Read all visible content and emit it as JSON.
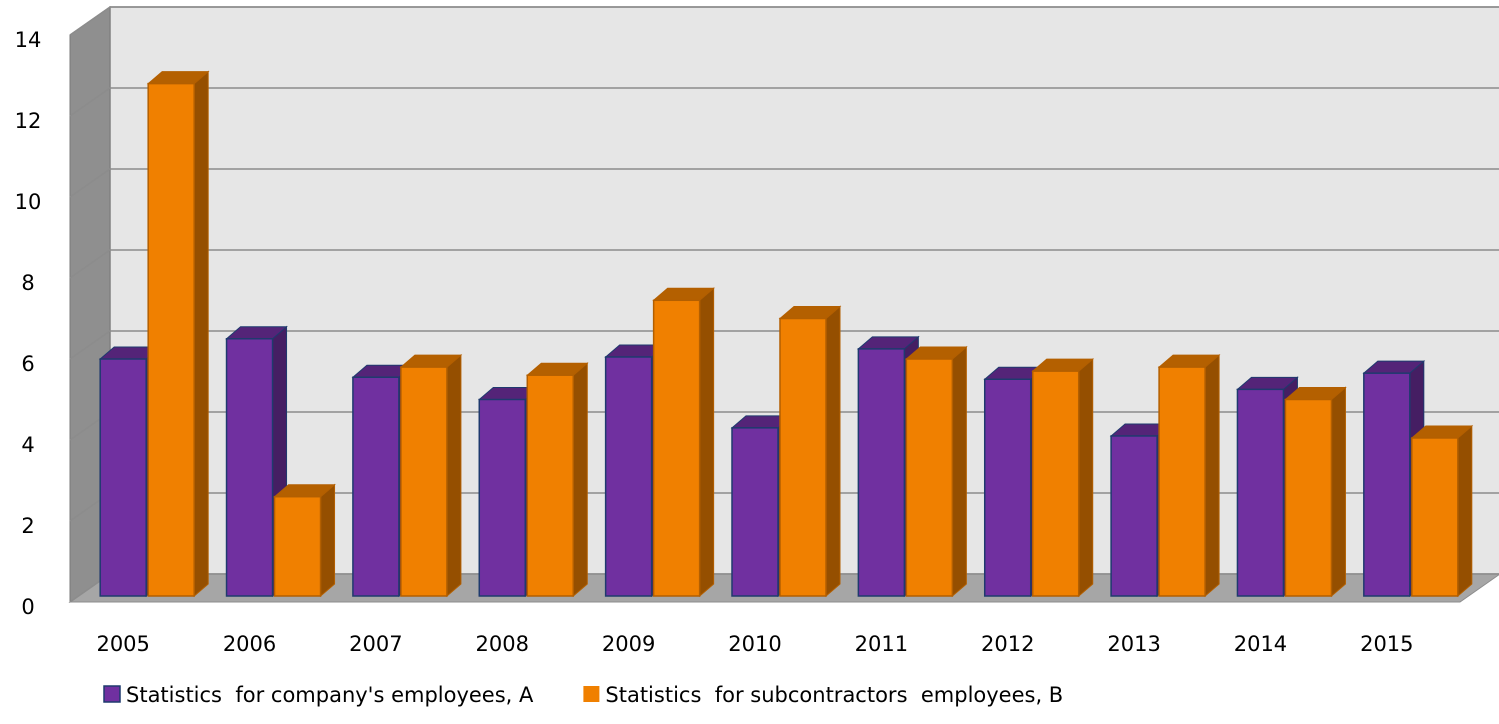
{
  "chart_data": {
    "type": "bar3d",
    "categories": [
      "2005",
      "2006",
      "2007",
      "2008",
      "2009",
      "2010",
      "2011",
      "2012",
      "2013",
      "2014",
      "2015"
    ],
    "series": [
      {
        "name": "Statistics  for company's employees, A",
        "color": "#7030a0",
        "values": [
          6.0,
          6.5,
          5.55,
          5.0,
          6.05,
          4.3,
          6.25,
          5.5,
          4.1,
          5.25,
          5.65
        ]
      },
      {
        "name": "Statistics  for subcontractors  employees, B",
        "color": "#f08000",
        "values": [
          12.8,
          2.6,
          5.8,
          5.6,
          7.45,
          7.0,
          6.0,
          5.7,
          5.8,
          5.0,
          4.05
        ]
      }
    ],
    "ylim": [
      0,
      14
    ],
    "yticks": [
      0,
      2,
      4,
      6,
      8,
      10,
      12,
      14
    ],
    "grid": true,
    "legend": "bottom"
  }
}
